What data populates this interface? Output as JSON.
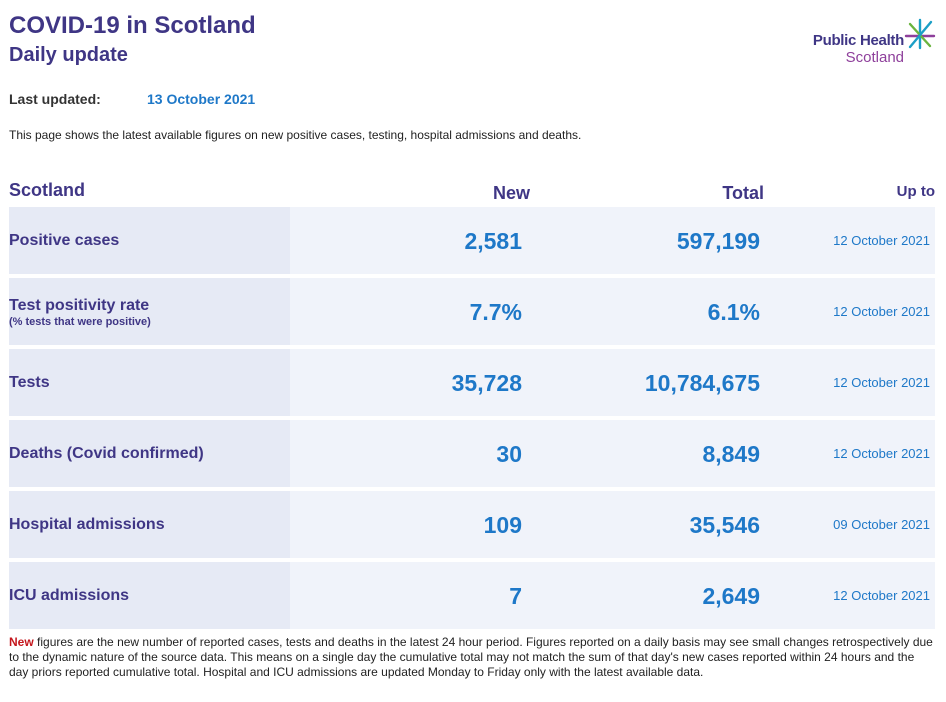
{
  "header": {
    "title": "COVID-19 in Scotland",
    "subtitle": "Daily update",
    "logo_line1": "Public Health",
    "logo_line2": "Scotland"
  },
  "updated": {
    "label": "Last updated:",
    "date": "13 October 2021"
  },
  "intro": "This page shows the latest available figures on new positive cases, testing, hospital admissions and deaths.",
  "table": {
    "region": "Scotland",
    "col_new": "New",
    "col_total": "Total",
    "col_upto": "Up to",
    "rows": [
      {
        "label": "Positive cases",
        "sub": "",
        "new": "2,581",
        "total": "597,199",
        "date": "12 October 2021"
      },
      {
        "label": "Test positivity rate",
        "sub": "(% tests that were positive)",
        "new": "7.7%",
        "total": "6.1%",
        "date": "12 October 2021"
      },
      {
        "label": "Tests",
        "sub": "",
        "new": "35,728",
        "total": "10,784,675",
        "date": "12 October 2021"
      },
      {
        "label": "Deaths (Covid confirmed)",
        "sub": "",
        "new": "30",
        "total": "8,849",
        "date": "12 October 2021"
      },
      {
        "label": "Hospital admissions",
        "sub": "",
        "new": "109",
        "total": "35,546",
        "date": "09 October 2021"
      },
      {
        "label": "ICU admissions",
        "sub": "",
        "new": "7",
        "total": "2,649",
        "date": "12 October 2021"
      }
    ]
  },
  "footnote": {
    "highlight": "New",
    "text": " figures are the new number of reported cases, tests and deaths in the latest 24 hour period. Figures reported on a daily basis may see small changes retrospectively due to the dynamic nature of the source data. This means on a single day the cumulative total may not match the sum of that day's new cases reported within 24 hours and the day priors reported cumulative total. Hospital and ICU admissions are updated Monday to Friday only with the latest available data."
  },
  "colors": {
    "brand_purple": "#3f3685",
    "value_blue": "#1e78c8",
    "highlight_red": "#c4161c",
    "star_green": "#6ab43e",
    "star_teal": "#1b9fc6",
    "star_purple": "#8e3f9b"
  },
  "icons": {
    "logo": "phs-star-icon"
  }
}
